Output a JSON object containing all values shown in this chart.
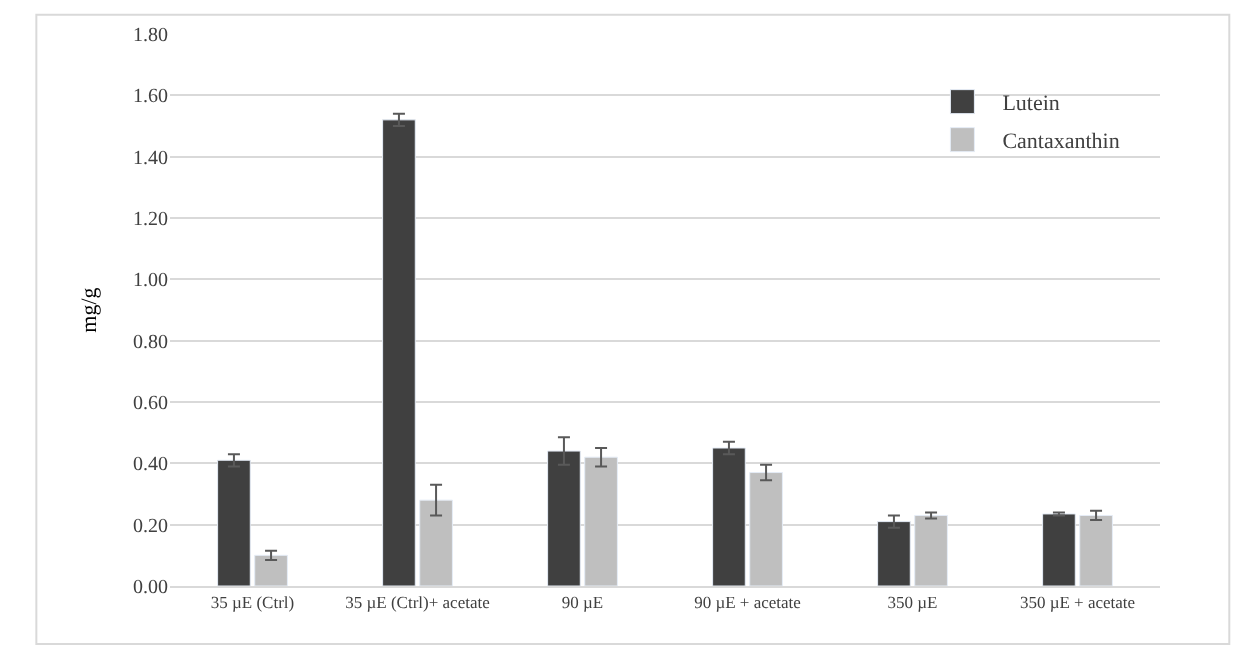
{
  "chart_data": {
    "type": "bar",
    "ylabel": "mg/g",
    "categories": [
      "35 µE (Ctrl)",
      "35 µE (Ctrl)+ acetate",
      "90 µE",
      "90 µE + acetate",
      "350 µE",
      "350 µE + acetate"
    ],
    "series": [
      {
        "name": "Lutein",
        "color": "#404040",
        "values": [
          0.41,
          1.52,
          0.44,
          0.45,
          0.21,
          0.235
        ],
        "errors": [
          0.02,
          0.02,
          0.045,
          0.02,
          0.02,
          0.005
        ]
      },
      {
        "name": "Cantaxanthin",
        "color": "#bfbfbf",
        "values": [
          0.1,
          0.28,
          0.42,
          0.37,
          0.23,
          0.23
        ],
        "errors": [
          0.015,
          0.05,
          0.03,
          0.025,
          0.01,
          0.015
        ]
      }
    ],
    "ylim": [
      0,
      1.8
    ],
    "yticks": [
      {
        "value": 0,
        "label": "0.00"
      },
      {
        "value": 0.2,
        "label": "0.20"
      },
      {
        "value": 0.4,
        "label": "0.40"
      },
      {
        "value": 0.6,
        "label": "0.60"
      },
      {
        "value": 0.8,
        "label": "0.80"
      },
      {
        "value": 1.0,
        "label": "1.00"
      },
      {
        "value": 1.2,
        "label": "1.20"
      },
      {
        "value": 1.4,
        "label": "1.40"
      },
      {
        "value": 1.6,
        "label": "1.60"
      },
      {
        "value": 1.8,
        "label": "1.80"
      }
    ],
    "grid": "y",
    "legend": "top right"
  }
}
